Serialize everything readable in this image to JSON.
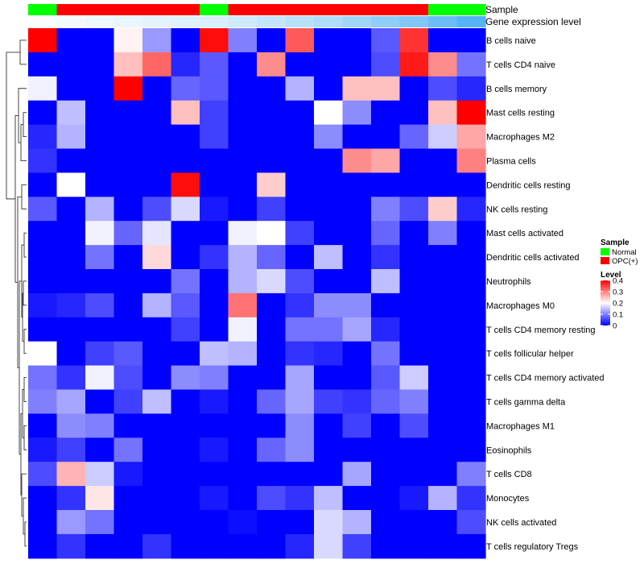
{
  "chart_data": {
    "type": "heatmap",
    "annotation_labels": [
      "Sample",
      "Gene expression level"
    ],
    "sample_groups": [
      "Normal",
      "OPC(+)",
      "OPC(+)",
      "OPC(+)",
      "OPC(+)",
      "OPC(+)",
      "Normal",
      "OPC(+)",
      "OPC(+)",
      "OPC(+)",
      "OPC(+)",
      "OPC(+)",
      "OPC(+)",
      "OPC(+)",
      "Normal",
      "Normal"
    ],
    "gene_expression_level": [
      0.02,
      0.04,
      0.06,
      0.08,
      0.1,
      0.12,
      0.14,
      0.18,
      0.22,
      0.26,
      0.3,
      0.36,
      0.42,
      0.48,
      0.56,
      0.64
    ],
    "rows": [
      "B cells naive",
      "T cells CD4 naive",
      "B cells memory",
      "Mast cells resting",
      "Macrophages M2",
      "Plasma cells",
      "Dendritic cells resting",
      "NK cells resting",
      "Mast cells activated",
      "Dendritic cells activated",
      "Neutrophils",
      "Macrophages M0",
      "T cells CD4 memory resting",
      "T cells follicular helper",
      "T cells CD4 memory activated",
      "T cells gamma delta",
      "Macrophages M1",
      "Eosinophils",
      "T cells CD8",
      "Monocytes",
      "NK cells activated",
      "T cells regulatory  Tregs"
    ],
    "values": [
      [
        0.4,
        0.0,
        0.0,
        0.21,
        0.12,
        0.0,
        0.39,
        0.1,
        0.0,
        0.33,
        0.0,
        0.0,
        0.07,
        0.36,
        0.0,
        0.0
      ],
      [
        0.0,
        0.0,
        0.0,
        0.25,
        0.32,
        0.03,
        0.07,
        0.0,
        0.29,
        0.0,
        0.0,
        0.0,
        0.06,
        0.38,
        0.29,
        0.09
      ],
      [
        0.19,
        0.0,
        0.0,
        0.4,
        0.0,
        0.08,
        0.07,
        0.0,
        0.0,
        0.14,
        0.0,
        0.25,
        0.25,
        0.0,
        0.06,
        0.03
      ],
      [
        0.0,
        0.15,
        0.0,
        0.0,
        0.0,
        0.25,
        0.05,
        0.0,
        0.0,
        0.0,
        0.2,
        0.11,
        0.0,
        0.0,
        0.25,
        0.4
      ],
      [
        0.03,
        0.14,
        0.0,
        0.0,
        0.0,
        0.0,
        0.05,
        0.0,
        0.0,
        0.0,
        0.11,
        0.0,
        0.0,
        0.08,
        0.16,
        0.27
      ],
      [
        0.04,
        0.0,
        0.0,
        0.0,
        0.0,
        0.0,
        0.0,
        0.0,
        0.0,
        0.0,
        0.0,
        0.29,
        0.27,
        0.0,
        0.0,
        0.3
      ],
      [
        0.0,
        0.2,
        0.0,
        0.0,
        0.0,
        0.39,
        0.0,
        0.0,
        0.24,
        0.0,
        0.0,
        0.0,
        0.0,
        0.0,
        0.0,
        0.0
      ],
      [
        0.07,
        0.0,
        0.14,
        0.0,
        0.06,
        0.17,
        0.02,
        0.0,
        0.05,
        0.0,
        0.0,
        0.0,
        0.1,
        0.06,
        0.24,
        0.03
      ],
      [
        0.0,
        0.0,
        0.19,
        0.08,
        0.18,
        0.0,
        0.0,
        0.19,
        0.2,
        0.05,
        0.0,
        0.0,
        0.08,
        0.0,
        0.1,
        0.0
      ],
      [
        0.0,
        0.0,
        0.09,
        0.0,
        0.23,
        0.0,
        0.04,
        0.14,
        0.08,
        0.0,
        0.15,
        0.0,
        0.04,
        0.0,
        0.0,
        0.0
      ],
      [
        0.0,
        0.0,
        0.0,
        0.0,
        0.0,
        0.09,
        0.0,
        0.14,
        0.17,
        0.06,
        0.0,
        0.0,
        0.15,
        0.0,
        0.0,
        0.0
      ],
      [
        0.02,
        0.03,
        0.06,
        0.0,
        0.14,
        0.07,
        0.0,
        0.31,
        0.0,
        0.04,
        0.11,
        0.11,
        0.0,
        0.0,
        0.0,
        0.0
      ],
      [
        0.0,
        0.0,
        0.0,
        0.0,
        0.0,
        0.05,
        0.0,
        0.19,
        0.0,
        0.09,
        0.09,
        0.13,
        0.03,
        0.0,
        0.0,
        0.0
      ],
      [
        0.2,
        0.0,
        0.05,
        0.07,
        0.0,
        0.0,
        0.15,
        0.14,
        0.0,
        0.04,
        0.03,
        0.0,
        0.09,
        0.0,
        0.0,
        0.0
      ],
      [
        0.09,
        0.04,
        0.19,
        0.06,
        0.0,
        0.11,
        0.1,
        0.0,
        0.0,
        0.13,
        0.0,
        0.0,
        0.07,
        0.16,
        0.0,
        0.0
      ],
      [
        0.1,
        0.13,
        0.0,
        0.05,
        0.15,
        0.0,
        0.02,
        0.0,
        0.08,
        0.13,
        0.05,
        0.04,
        0.08,
        0.1,
        0.0,
        0.0
      ],
      [
        0.0,
        0.11,
        0.1,
        0.0,
        0.0,
        0.0,
        0.0,
        0.0,
        0.0,
        0.11,
        0.0,
        0.05,
        0.0,
        0.06,
        0.0,
        0.0
      ],
      [
        0.02,
        0.05,
        0.0,
        0.09,
        0.0,
        0.0,
        0.02,
        0.0,
        0.08,
        0.11,
        0.0,
        0.0,
        0.0,
        0.0,
        0.0,
        0.0
      ],
      [
        0.06,
        0.26,
        0.16,
        0.02,
        0.0,
        0.0,
        0.0,
        0.0,
        0.0,
        0.0,
        0.0,
        0.13,
        0.0,
        0.0,
        0.0,
        0.1
      ],
      [
        0.0,
        0.04,
        0.22,
        0.0,
        0.0,
        0.0,
        0.02,
        0.0,
        0.06,
        0.04,
        0.15,
        0.0,
        0.0,
        0.02,
        0.14,
        0.04
      ],
      [
        0.0,
        0.12,
        0.09,
        0.0,
        0.0,
        0.0,
        0.0,
        0.01,
        0.0,
        0.0,
        0.17,
        0.14,
        0.0,
        0.0,
        0.0,
        0.06
      ],
      [
        0.0,
        0.04,
        0.0,
        0.0,
        0.04,
        0.0,
        0.0,
        0.0,
        0.0,
        0.03,
        0.17,
        0.05,
        0.0,
        0.0,
        0.0,
        0.0
      ]
    ],
    "legend": {
      "sample_title": "Sample",
      "sample_entries": [
        {
          "label": "Normal",
          "color": "#00FF00"
        },
        {
          "label": "OPC(+)",
          "color": "#FF0000"
        }
      ],
      "level_title": "Level",
      "level_ticks": [
        {
          "label": "0.4",
          "value": 0.4
        },
        {
          "label": "0.3",
          "value": 0.3
        },
        {
          "label": "0.2",
          "value": 0.2
        },
        {
          "label": "0.1",
          "value": 0.1
        },
        {
          "label": "0",
          "value": 0
        }
      ],
      "placement": "right"
    },
    "color_scale": {
      "low": "#0000FF",
      "mid": "#FFFFFF",
      "high": "#FF0000",
      "min": 0,
      "mid_value": 0.2,
      "max": 0.4
    },
    "expression_bar_colors": {
      "low": "#FFFFFF",
      "high": "#56B4F6"
    },
    "row_dendrogram": true
  }
}
